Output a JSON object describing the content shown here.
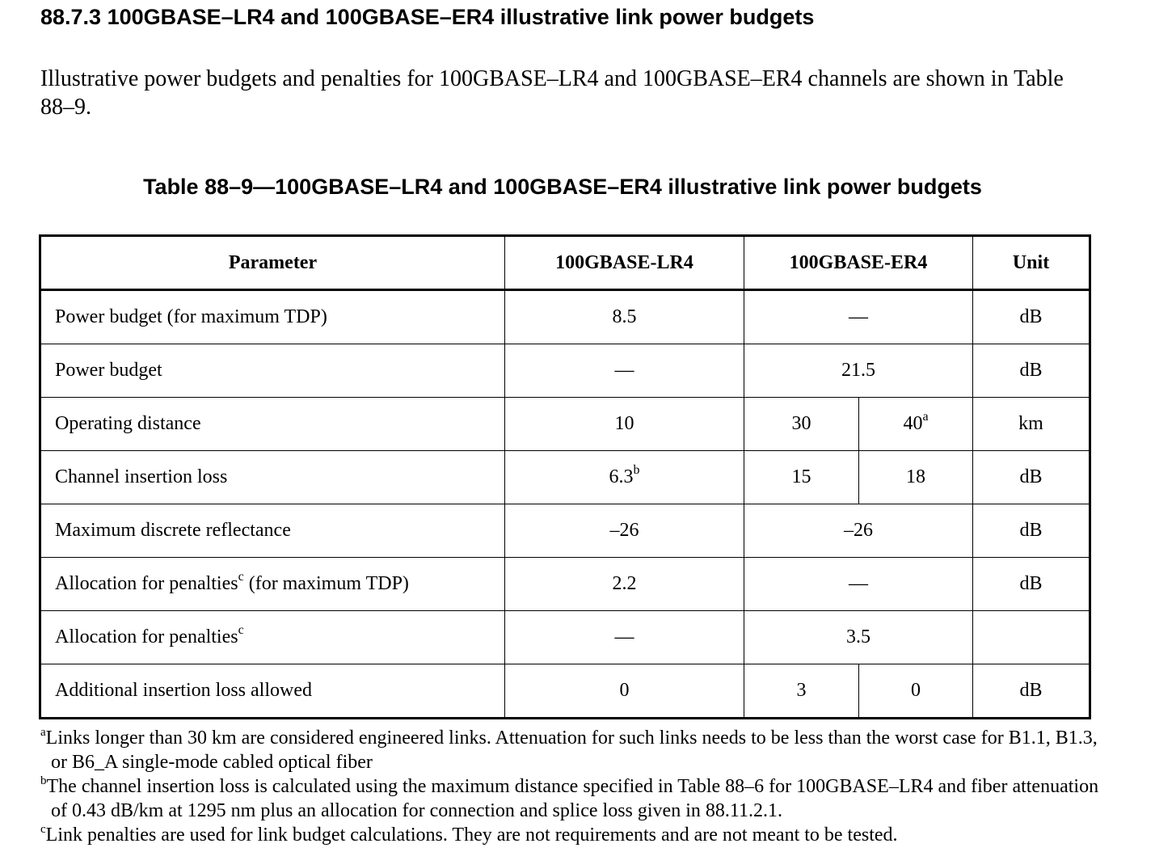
{
  "section": {
    "heading": "88.7.3 100GBASE–LR4 and 100GBASE–ER4 illustrative link power budgets",
    "intro": "Illustrative power budgets and penalties for 100GBASE–LR4 and 100GBASE–ER4 channels are shown in Table 88–9."
  },
  "table": {
    "caption": "Table 88–9—100GBASE–LR4 and 100GBASE–ER4 illustrative link power budgets",
    "headers": {
      "parameter": "Parameter",
      "lr4": "100GBASE-LR4",
      "er4": "100GBASE-ER4",
      "unit": "Unit"
    },
    "rows": [
      {
        "parameter": "Power budget (for maximum TDP)",
        "lr4": "8.5",
        "er4": "—",
        "unit": "dB"
      },
      {
        "parameter": "Power budget",
        "lr4": "—",
        "er4": "21.5",
        "unit": "dB"
      },
      {
        "parameter": "Operating distance",
        "lr4": "10",
        "er4_a": "30",
        "er4_b": "40",
        "er4_b_note": "a",
        "unit": "km"
      },
      {
        "parameter": "Channel insertion loss",
        "lr4": "6.3",
        "lr4_note": "b",
        "er4_a": "15",
        "er4_b": "18",
        "unit": "dB"
      },
      {
        "parameter": "Maximum discrete reflectance",
        "lr4": "–26",
        "er4": "–26",
        "unit": "dB"
      },
      {
        "parameter_pre": "Allocation for penalties",
        "parameter_note": "c",
        "parameter_post": " (for maximum TDP)",
        "lr4": "2.2",
        "er4": "—",
        "unit": "dB"
      },
      {
        "parameter_pre": "Allocation for penalties",
        "parameter_note": "c",
        "lr4": "—",
        "er4": "3.5",
        "unit": ""
      },
      {
        "parameter": "Additional insertion loss allowed",
        "lr4": "0",
        "er4_a": "3",
        "er4_b": "0",
        "unit": "dB"
      }
    ]
  },
  "footnotes": [
    {
      "mark": "a",
      "text": "Links longer than 30 km are considered engineered links. Attenuation for such links needs to be less than the worst case for B1.1, B1.3, or B6_A single-mode cabled optical fiber"
    },
    {
      "mark": "b",
      "text": "The channel insertion loss is calculated using the maximum distance specified in Table 88–6 for 100GBASE–LR4 and fiber attenuation of 0.43 dB/km at 1295 nm plus an allocation for connection and splice loss given in 88.11.2.1."
    },
    {
      "mark": "c",
      "text": "Link penalties are used for link budget calculations. They are not requirements and are not meant to be tested."
    }
  ]
}
